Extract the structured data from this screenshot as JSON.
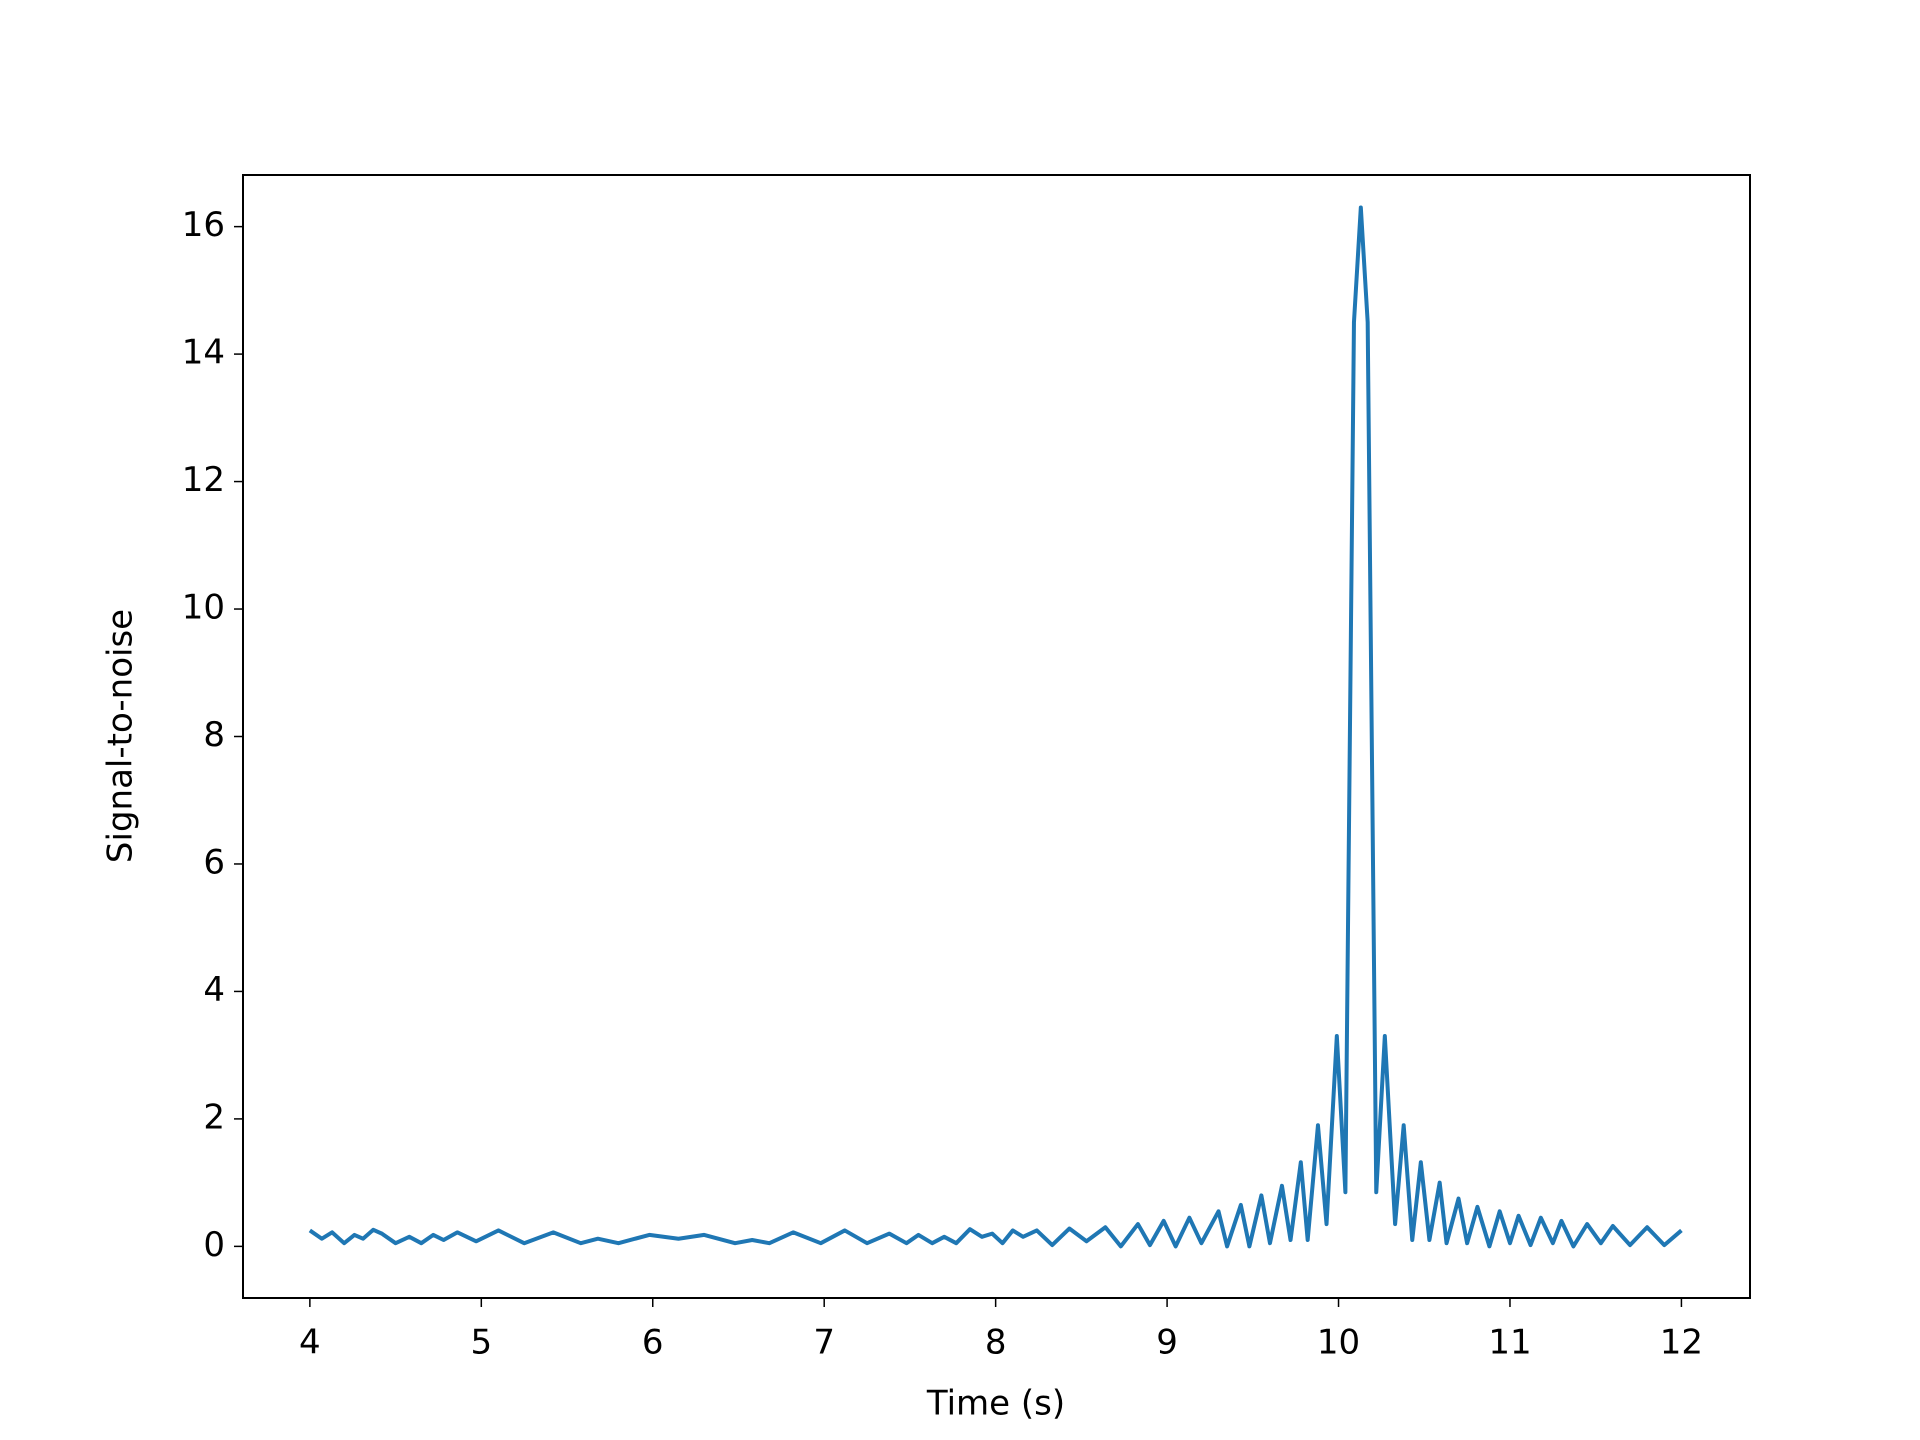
{
  "chart_data": {
    "type": "line",
    "xlabel": "Time (s)",
    "ylabel": "Signal-to-noise",
    "color": "#1f77b4",
    "xlim": [
      3.61,
      12.4
    ],
    "ylim": [
      -0.81,
      16.81
    ],
    "xticks": [
      4,
      5,
      6,
      7,
      8,
      9,
      10,
      11,
      12
    ],
    "yticks": [
      0,
      2,
      4,
      6,
      8,
      10,
      12,
      14,
      16
    ],
    "x": [
      4.0,
      4.07,
      4.13,
      4.2,
      4.26,
      4.31,
      4.37,
      4.42,
      4.5,
      4.58,
      4.65,
      4.72,
      4.78,
      4.86,
      4.97,
      5.1,
      5.25,
      5.42,
      5.58,
      5.68,
      5.8,
      5.98,
      6.15,
      6.3,
      6.48,
      6.58,
      6.68,
      6.82,
      6.98,
      7.12,
      7.25,
      7.38,
      7.48,
      7.55,
      7.63,
      7.7,
      7.77,
      7.85,
      7.92,
      7.98,
      8.04,
      8.1,
      8.16,
      8.24,
      8.33,
      8.43,
      8.53,
      8.64,
      8.73,
      8.83,
      8.9,
      8.98,
      9.05,
      9.13,
      9.2,
      9.3,
      9.35,
      9.43,
      9.48,
      9.55,
      9.6,
      9.67,
      9.72,
      9.78,
      9.82,
      9.88,
      9.93,
      9.99,
      10.04,
      10.09,
      10.13,
      10.17,
      10.22,
      10.27,
      10.33,
      10.38,
      10.43,
      10.48,
      10.53,
      10.59,
      10.63,
      10.7,
      10.75,
      10.81,
      10.88,
      10.94,
      11.0,
      11.05,
      11.12,
      11.18,
      11.25,
      11.3,
      11.37,
      11.45,
      11.53,
      11.6,
      11.7,
      11.8,
      11.9,
      12.0
    ],
    "values": [
      0.25,
      0.12,
      0.22,
      0.05,
      0.18,
      0.12,
      0.26,
      0.2,
      0.05,
      0.15,
      0.05,
      0.18,
      0.1,
      0.22,
      0.08,
      0.25,
      0.05,
      0.22,
      0.05,
      0.12,
      0.05,
      0.18,
      0.12,
      0.18,
      0.05,
      0.1,
      0.05,
      0.22,
      0.05,
      0.25,
      0.05,
      0.2,
      0.05,
      0.18,
      0.05,
      0.15,
      0.05,
      0.27,
      0.15,
      0.2,
      0.05,
      0.25,
      0.15,
      0.25,
      0.02,
      0.28,
      0.08,
      0.3,
      0.0,
      0.35,
      0.02,
      0.4,
      0.0,
      0.45,
      0.05,
      0.55,
      0.0,
      0.65,
      0.0,
      0.8,
      0.05,
      0.95,
      0.1,
      1.32,
      0.1,
      1.9,
      0.35,
      3.3,
      0.85,
      14.5,
      16.3,
      14.5,
      0.85,
      3.3,
      0.35,
      1.9,
      0.1,
      1.32,
      0.1,
      1.0,
      0.05,
      0.75,
      0.05,
      0.62,
      0.0,
      0.55,
      0.05,
      0.48,
      0.02,
      0.45,
      0.05,
      0.4,
      0.0,
      0.35,
      0.05,
      0.32,
      0.02,
      0.3,
      0.02,
      0.25
    ]
  }
}
